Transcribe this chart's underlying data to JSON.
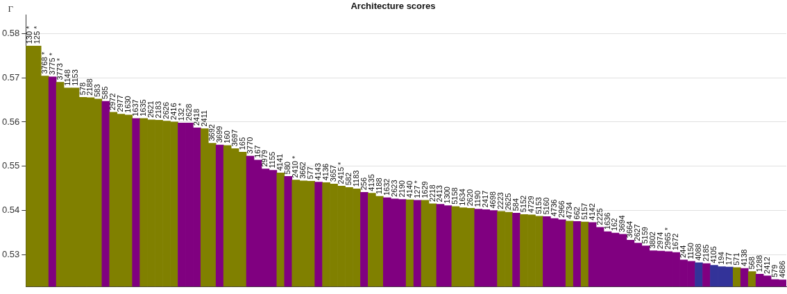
{
  "chart_data": {
    "type": "bar",
    "title": "Architecture scores",
    "ylabel": "Γ",
    "categories": [
      "130 *",
      "125 *",
      "3768 *",
      "3775 *",
      "3773 *",
      "1148",
      "1153",
      "578",
      "2188",
      "583",
      "585",
      "2972",
      "2977",
      "1630",
      "1637",
      "1635",
      "2621",
      "2183",
      "2626",
      "2416",
      "132 *",
      "2628",
      "2418",
      "2411",
      "3692",
      "3699",
      "160",
      "3697",
      "165",
      "3770",
      "167",
      "2979",
      "1155",
      "4141",
      "580",
      "2410 *",
      "3662",
      "577",
      "4143",
      "4136",
      "3657",
      "2415 *",
      "582",
      "1183",
      "256",
      "4135",
      "1188",
      "1632",
      "2623",
      "2190",
      "4140",
      "127 *",
      "1629",
      "2218",
      "2413",
      "1300",
      "5158",
      "1634",
      "2620",
      "1190",
      "2417",
      "4698",
      "2223",
      "2625",
      "584",
      "5152",
      "4729",
      "5153",
      "5160",
      "4736",
      "2966",
      "4734",
      "662",
      "5157",
      "4142",
      "2225",
      "1636",
      "162",
      "3694",
      "3664",
      "2627",
      "5159",
      "3802",
      "2974",
      "2965 *",
      "1672",
      "244",
      "1150",
      "4088",
      "2185",
      "4105",
      "194",
      "177",
      "571",
      "4138",
      "568",
      "1288",
      "2412",
      "579",
      "4686"
    ],
    "values": [
      0.5772,
      0.5772,
      0.5704,
      0.5702,
      0.569,
      0.5677,
      0.5677,
      0.5656,
      0.5655,
      0.5652,
      0.5647,
      0.5622,
      0.5618,
      0.5616,
      0.5608,
      0.5608,
      0.5605,
      0.5604,
      0.5602,
      0.56,
      0.5598,
      0.5598,
      0.5587,
      0.5585,
      0.5552,
      0.5548,
      0.5547,
      0.554,
      0.5532,
      0.5523,
      0.5514,
      0.5494,
      0.5491,
      0.5485,
      0.5477,
      0.5469,
      0.5467,
      0.5466,
      0.5464,
      0.5463,
      0.546,
      0.5455,
      0.5452,
      0.5449,
      0.5441,
      0.5439,
      0.5432,
      0.5429,
      0.5426,
      0.5425,
      0.5424,
      0.5423,
      0.5423,
      0.5415,
      0.5414,
      0.5411,
      0.5409,
      0.5406,
      0.5405,
      0.5403,
      0.5402,
      0.54,
      0.5398,
      0.5396,
      0.5394,
      0.5391,
      0.539,
      0.5387,
      0.5386,
      0.5382,
      0.5379,
      0.5376,
      0.5375,
      0.5374,
      0.5373,
      0.5362,
      0.5352,
      0.5349,
      0.5346,
      0.5333,
      0.5326,
      0.532,
      0.5309,
      0.5308,
      0.5307,
      0.5305,
      0.5288,
      0.5285,
      0.5282,
      0.528,
      0.5276,
      0.5273,
      0.5272,
      0.5271,
      0.5269,
      0.5262,
      0.5256,
      0.5252,
      0.5244,
      0.5243
    ],
    "colors": [
      "#808000",
      "#808000",
      "#808000",
      "#800080",
      "#808000",
      "#808000",
      "#808000",
      "#808000",
      "#808000",
      "#808000",
      "#800080",
      "#808000",
      "#808000",
      "#808000",
      "#800080",
      "#808000",
      "#808000",
      "#808000",
      "#808000",
      "#808000",
      "#800080",
      "#800080",
      "#800080",
      "#808000",
      "#808000",
      "#800080",
      "#808000",
      "#808000",
      "#808000",
      "#800080",
      "#800080",
      "#800080",
      "#800080",
      "#808000",
      "#800080",
      "#808000",
      "#808000",
      "#808000",
      "#800080",
      "#808000",
      "#808000",
      "#808000",
      "#808000",
      "#808000",
      "#800080",
      "#808000",
      "#808000",
      "#800080",
      "#800080",
      "#800080",
      "#808000",
      "#800080",
      "#808000",
      "#808000",
      "#800080",
      "#800080",
      "#808000",
      "#808000",
      "#808000",
      "#800080",
      "#800080",
      "#800080",
      "#808000",
      "#808000",
      "#800080",
      "#808000",
      "#808000",
      "#808000",
      "#800080",
      "#800080",
      "#800080",
      "#808000",
      "#800080",
      "#808000",
      "#800080",
      "#800080",
      "#800080",
      "#800080",
      "#800080",
      "#800080",
      "#800080",
      "#800080",
      "#800080",
      "#800080",
      "#800080",
      "#800080",
      "#800080",
      "#800080",
      "#333399",
      "#800080",
      "#333399",
      "#333399",
      "#333399",
      "#808000",
      "#800080",
      "#808000",
      "#800080",
      "#800080",
      "#800080",
      "#800080"
    ],
    "ylim": [
      0.5228,
      0.5842
    ],
    "yticks": [
      0.53,
      0.54,
      0.55,
      0.56,
      0.57,
      0.58
    ],
    "grid": "y",
    "legend": false
  }
}
